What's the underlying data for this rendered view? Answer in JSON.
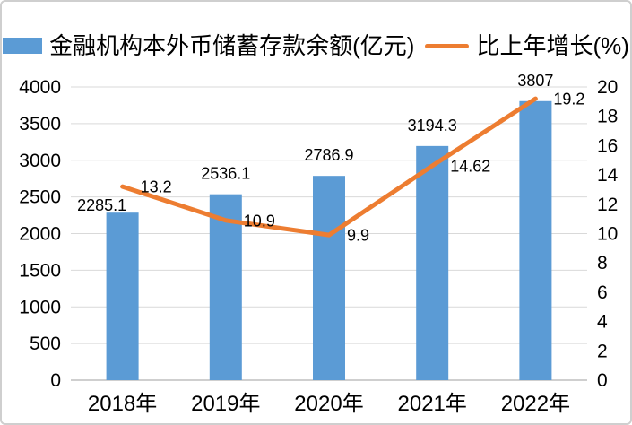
{
  "legend": {
    "items": [
      {
        "label": "金融机构本外币储蓄存款余额(亿元)",
        "swatch": "bar",
        "color": "#5B9BD5"
      },
      {
        "label": "比上年增长(%)",
        "swatch": "line",
        "color": "#ED7D31"
      }
    ]
  },
  "chart_data": {
    "type": "combo",
    "title": "",
    "categories": [
      "2018年",
      "2019年",
      "2020年",
      "2021年",
      "2022年"
    ],
    "series": [
      {
        "name": "金融机构本外币储蓄存款余额(亿元)",
        "type": "bar",
        "axis": "left",
        "color": "#5B9BD5",
        "values": [
          2285.1,
          2536.1,
          2786.9,
          3194.3,
          3807
        ],
        "labels": [
          "2285.1",
          "2536.1",
          "2786.9",
          "3194.3",
          "3807"
        ]
      },
      {
        "name": "比上年增长(%)",
        "type": "line",
        "axis": "right",
        "color": "#ED7D31",
        "values": [
          13.2,
          10.9,
          9.9,
          14.62,
          19.2
        ],
        "labels": [
          "13.2",
          "10.9",
          "9.9",
          "14.62",
          "19.2"
        ]
      }
    ],
    "left_axis": {
      "min": 0,
      "max": 4000,
      "step": 500,
      "ticks": [
        0,
        500,
        1000,
        1500,
        2000,
        2500,
        3000,
        3500,
        4000
      ]
    },
    "right_axis": {
      "min": 0,
      "max": 20,
      "step": 2,
      "ticks": [
        0,
        2,
        4,
        6,
        8,
        10,
        12,
        14,
        16,
        18,
        20
      ]
    },
    "grid": true,
    "legend_position": "top",
    "gridline_color": "#D9D9D9",
    "baseline_color": "#BFBFBF",
    "text_color": "#000000"
  }
}
